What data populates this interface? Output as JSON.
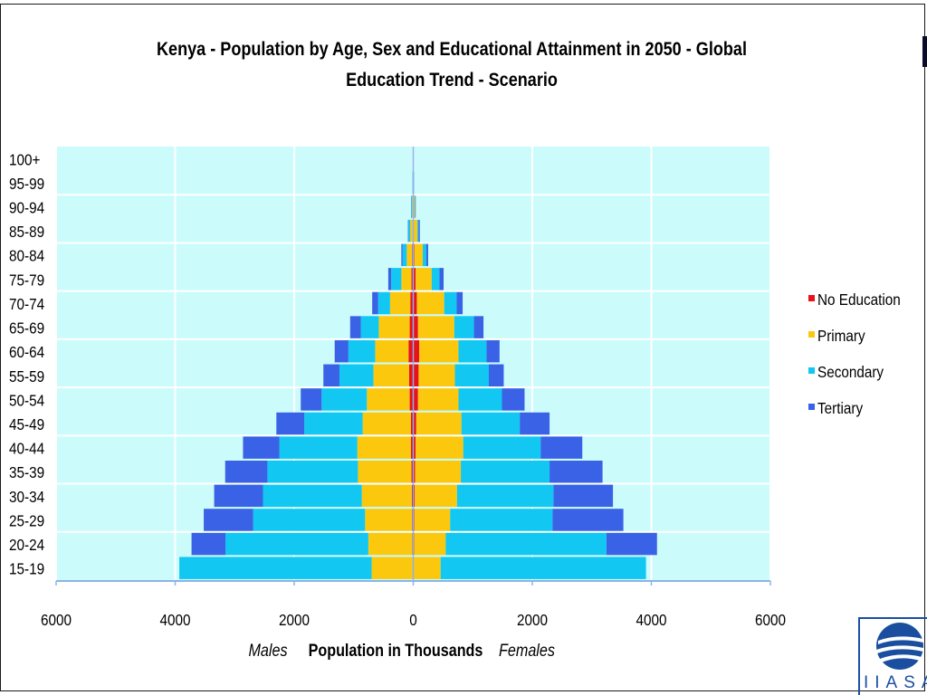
{
  "header_fragment": "",
  "logo": {
    "text": "IIASA",
    "color": "#1a4fa0"
  },
  "chart_data": {
    "type": "bar",
    "orientation": "horizontal-pyramid",
    "title": "Kenya - Population by Age, Sex and Educational Attainment in 2050 - Global Education Trend - Scenario",
    "xlabel": "Population in Thousands",
    "left_label": "Males",
    "right_label": "Females",
    "xlim": [
      -6000,
      6000
    ],
    "x_ticks": [
      -6000,
      -4000,
      -2000,
      0,
      2000,
      4000,
      6000
    ],
    "x_tick_labels": [
      "6000",
      "4000",
      "2000",
      "0",
      "2000",
      "4000",
      "6000"
    ],
    "grid": true,
    "legend_position": "right",
    "plot_background": "#ccfbfb",
    "categories": [
      "15-19",
      "20-24",
      "25-29",
      "30-34",
      "35-39",
      "40-44",
      "45-49",
      "50-54",
      "55-59",
      "60-64",
      "65-69",
      "70-74",
      "75-79",
      "80-84",
      "85-89",
      "90-94",
      "95-99",
      "100+"
    ],
    "series": [
      {
        "name": "No Education",
        "color": "#e8121c",
        "males": [
          10,
          15,
          20,
          25,
          30,
          40,
          40,
          60,
          70,
          80,
          60,
          50,
          30,
          20,
          10,
          5,
          2,
          0
        ],
        "females": [
          10,
          15,
          20,
          25,
          30,
          40,
          50,
          80,
          90,
          100,
          80,
          60,
          40,
          20,
          10,
          5,
          2,
          0
        ]
      },
      {
        "name": "Primary",
        "color": "#fbc80d",
        "males": [
          690,
          740,
          790,
          840,
          900,
          900,
          810,
          720,
          600,
          560,
          520,
          340,
          170,
          90,
          40,
          15,
          5,
          2
        ],
        "females": [
          450,
          530,
          600,
          710,
          770,
          800,
          760,
          680,
          610,
          660,
          610,
          460,
          270,
          140,
          60,
          20,
          6,
          2
        ]
      },
      {
        "name": "Secondary",
        "color": "#12c7f1",
        "males": [
          3230,
          2400,
          1880,
          1660,
          1520,
          1310,
          980,
          760,
          570,
          450,
          300,
          200,
          170,
          70,
          30,
          10,
          5,
          3
        ],
        "females": [
          3450,
          2700,
          1720,
          1620,
          1490,
          1300,
          980,
          730,
          570,
          470,
          330,
          210,
          130,
          60,
          20,
          8,
          3,
          2
        ]
      },
      {
        "name": "Tertiary",
        "color": "#3a62e6",
        "males": [
          0,
          570,
          830,
          820,
          710,
          610,
          470,
          350,
          270,
          230,
          180,
          100,
          50,
          20,
          10,
          5,
          2,
          1
        ],
        "females": [
          0,
          850,
          1190,
          1000,
          890,
          700,
          500,
          380,
          250,
          220,
          160,
          100,
          70,
          30,
          20,
          8,
          3,
          1
        ]
      }
    ]
  }
}
